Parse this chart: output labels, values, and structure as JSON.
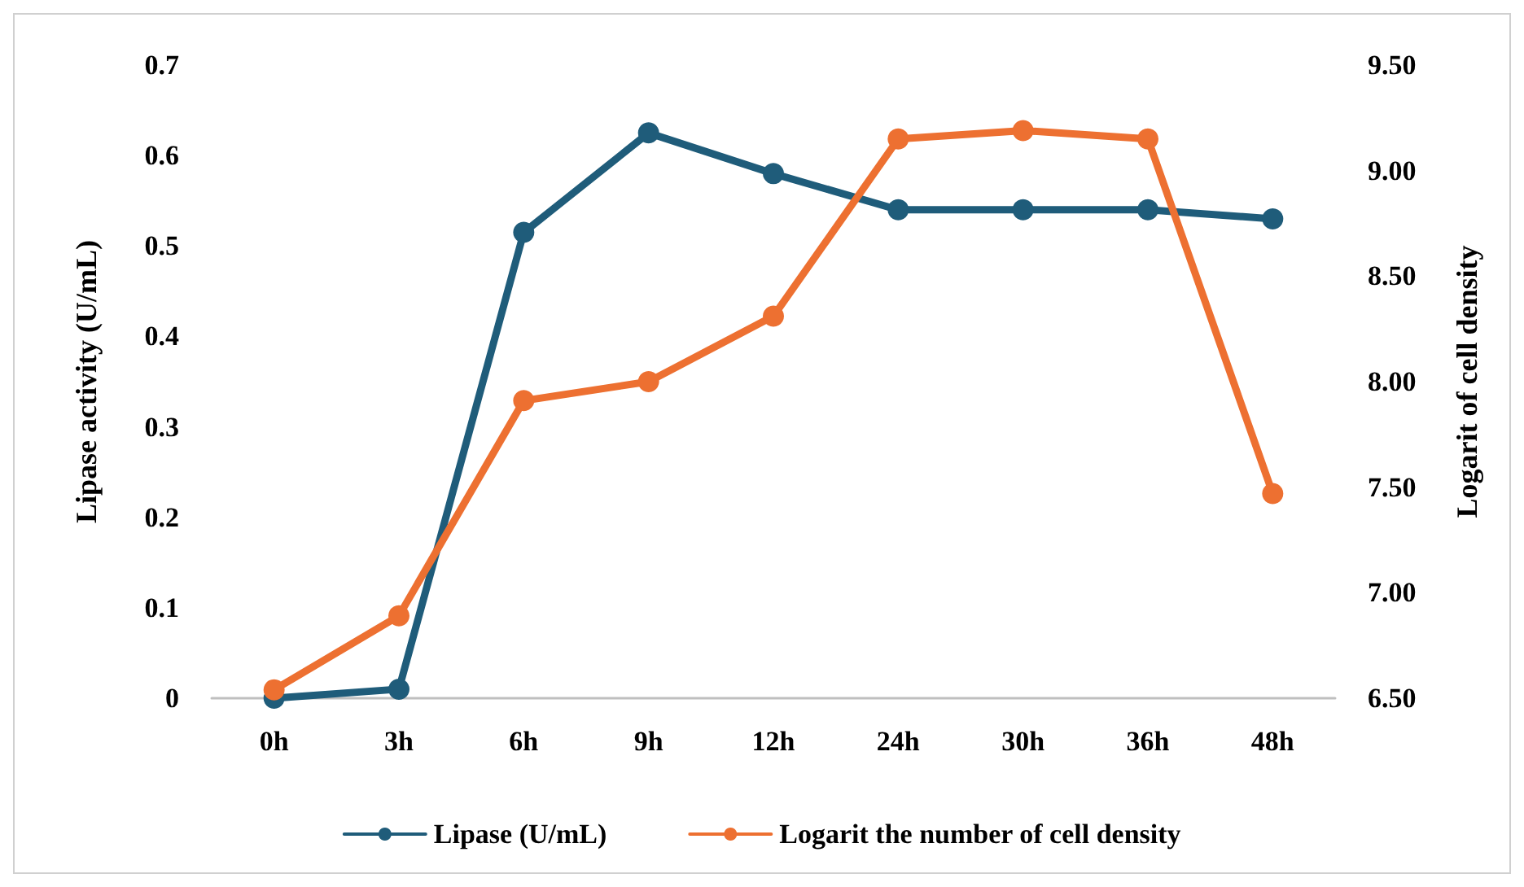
{
  "chart_data": {
    "type": "line",
    "categories": [
      "0h",
      "3h",
      "6h",
      "9h",
      "12h",
      "24h",
      "30h",
      "36h",
      "48h"
    ],
    "series": [
      {
        "name": "Lipase (U/mL)",
        "color": "#1f5c7a",
        "values": [
          0,
          0.01,
          0.515,
          0.625,
          0.58,
          0.54,
          0.54,
          0.54,
          0.53
        ]
      },
      {
        "name": "Logarit the number of cell density",
        "color": "#ed7031",
        "axis": "y2",
        "values": [
          6.54,
          6.89,
          7.91,
          8.0,
          8.31,
          9.15,
          9.19,
          9.15,
          7.47
        ]
      }
    ],
    "ylabel": "Lipase activity (U/mL)",
    "y2label": "Logarit of cell density",
    "ylim": [
      0,
      0.7
    ],
    "yticks": [
      0,
      0.1,
      0.2,
      0.3,
      0.4,
      0.5,
      0.6,
      0.7
    ],
    "y2lim": [
      6.5,
      9.5
    ],
    "y2ticks": [
      {
        "value": 6.5,
        "label": "6.50"
      },
      {
        "value": 7,
        "label": "7.00"
      },
      {
        "value": 7.5,
        "label": "7.50"
      },
      {
        "value": 8,
        "label": "8.00"
      },
      {
        "value": 8.5,
        "label": "8.50"
      },
      {
        "value": 9,
        "label": "9.00"
      },
      {
        "value": 9.5,
        "label": "9.50"
      }
    ],
    "grid": false,
    "legend": "bottom",
    "marker": "circle",
    "line_style": "solid"
  }
}
